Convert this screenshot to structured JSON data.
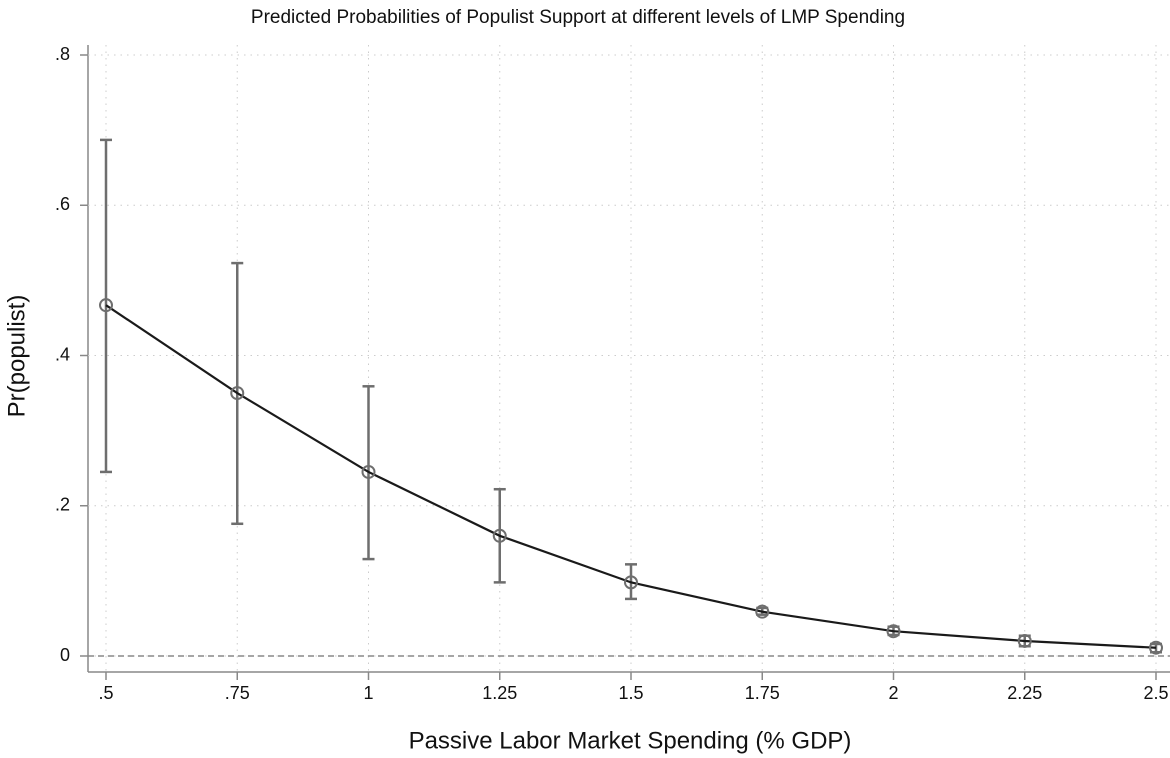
{
  "chart_data": {
    "type": "line-errorbar",
    "title": "Predicted Probabilities of Populist Support at different levels of LMP Spending",
    "x_label": "Passive Labor Market Spending (% GDP)",
    "y_label": "Pr(populist)",
    "x": [
      0.5,
      0.75,
      1,
      1.25,
      1.5,
      1.75,
      2,
      2.25,
      2.5
    ],
    "series": [
      {
        "name": "Pr(populist)",
        "color": "#1a1a1a",
        "values": [
          0.467,
          0.35,
          0.245,
          0.16,
          0.098,
          0.059,
          0.033,
          0.02,
          0.011
        ],
        "lower": [
          0.245,
          0.176,
          0.129,
          0.098,
          0.076,
          0.055,
          0.028,
          0.013,
          0.005
        ],
        "upper": [
          0.687,
          0.523,
          0.359,
          0.222,
          0.122,
          0.064,
          0.039,
          0.027,
          0.016
        ]
      }
    ],
    "errorbar_color": "#6e6e6e",
    "xlim": [
      0.5,
      2.5
    ],
    "xticks": [
      {
        "value": 0.5,
        "label": ".5"
      },
      {
        "value": 0.75,
        "label": ".75"
      },
      1,
      1.25,
      1.5,
      1.75,
      2,
      2.25,
      2.5
    ],
    "ylim": [
      0,
      0.8
    ],
    "yticks": [
      0,
      {
        "value": 0.2,
        "label": ".2"
      },
      {
        "value": 0.4,
        "label": ".4"
      },
      {
        "value": 0.6,
        "label": ".6"
      },
      {
        "value": 0.8,
        "label": ".8"
      }
    ],
    "grid": true,
    "reference_line": 0
  }
}
